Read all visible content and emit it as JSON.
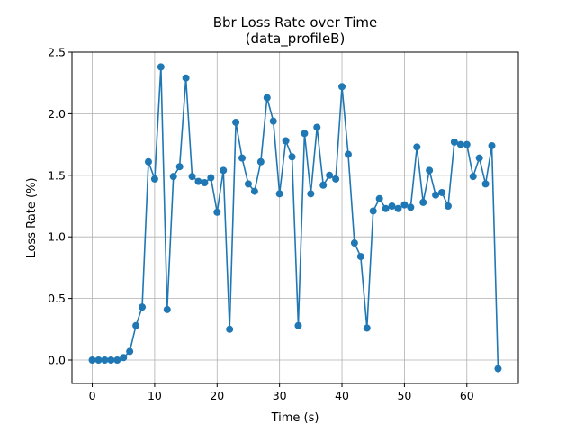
{
  "chart_data": {
    "type": "line",
    "title": "Bbr Loss Rate over Time",
    "subtitle": "(data_profileB)",
    "xlabel": "Time (s)",
    "ylabel": "Loss Rate (%)",
    "xlim": [
      -3.25,
      68.25
    ],
    "ylim": [
      -0.19,
      2.5
    ],
    "xticks": [
      0,
      10,
      20,
      30,
      40,
      50,
      60
    ],
    "yticks": [
      0.0,
      0.5,
      1.0,
      1.5,
      2.0,
      2.5
    ],
    "xtick_labels": [
      "0",
      "10",
      "20",
      "30",
      "40",
      "50",
      "60"
    ],
    "ytick_labels": [
      "0.0",
      "0.5",
      "1.0",
      "1.5",
      "2.0",
      "2.5"
    ],
    "grid": true,
    "marker": "circle",
    "color": "#1f77b4",
    "series": [
      {
        "x": [
          0,
          1,
          2,
          3,
          4,
          5,
          6,
          7,
          8,
          9,
          10,
          11,
          12,
          13,
          14,
          15,
          16,
          17,
          18,
          19,
          20,
          21,
          22,
          23,
          24,
          25,
          26,
          27,
          28,
          29,
          30,
          31,
          32,
          33,
          34,
          35,
          36,
          37,
          38,
          39,
          40,
          41,
          42,
          43,
          44,
          45,
          46,
          47,
          48,
          49,
          50,
          51,
          52,
          53,
          54,
          55,
          56,
          57,
          58,
          59,
          60,
          61,
          62,
          63,
          64,
          65
        ],
        "y": [
          0.0,
          0.0,
          0.0,
          0.0,
          0.0,
          0.02,
          0.07,
          0.28,
          0.43,
          1.61,
          1.47,
          2.38,
          0.41,
          1.49,
          1.57,
          2.29,
          1.49,
          1.45,
          1.44,
          1.48,
          1.2,
          1.54,
          0.25,
          1.93,
          1.64,
          1.43,
          1.37,
          1.61,
          2.13,
          1.94,
          1.35,
          1.78,
          1.65,
          0.28,
          1.84,
          1.35,
          1.89,
          1.42,
          1.5,
          1.47,
          2.22,
          1.67,
          0.95,
          0.84,
          0.26,
          1.21,
          1.31,
          1.23,
          1.25,
          1.23,
          1.26,
          1.24,
          1.73,
          1.28,
          1.54,
          1.34,
          1.36,
          1.25,
          1.77,
          1.75,
          1.75,
          1.49,
          1.64,
          1.43,
          1.74,
          -0.07
        ]
      }
    ]
  }
}
